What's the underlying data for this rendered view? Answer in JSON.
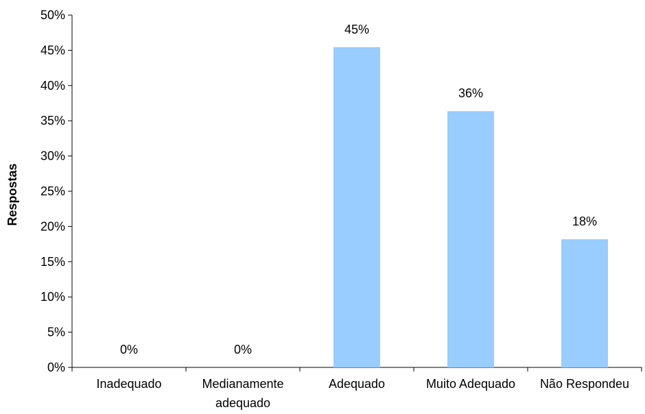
{
  "chart_data": {
    "type": "bar",
    "title": "",
    "xlabel": "",
    "ylabel": "Respostas",
    "categories": [
      "Inadequado",
      "Medianamente adequado",
      "Adequado",
      "Muito Adequado",
      "Não Respondeu"
    ],
    "category_lines": [
      [
        "Inadequado"
      ],
      [
        "Medianamente",
        "adequado"
      ],
      [
        "Adequado"
      ],
      [
        "Muito Adequado"
      ],
      [
        "Não Respondeu"
      ]
    ],
    "values": [
      0,
      0,
      45.45,
      36.36,
      18.18
    ],
    "data_labels": [
      "0%",
      "0%",
      "45%",
      "36%",
      "18%"
    ],
    "ylim": [
      0,
      50
    ],
    "yticks": [
      0,
      5,
      10,
      15,
      20,
      25,
      30,
      35,
      40,
      45,
      50
    ],
    "ytick_labels": [
      "0%",
      "5%",
      "10%",
      "15%",
      "20%",
      "25%",
      "30%",
      "35%",
      "40%",
      "45%",
      "50%"
    ],
    "bar_color": "#99ccff",
    "axis_color": "#000000",
    "grid": false,
    "legend": "none"
  }
}
